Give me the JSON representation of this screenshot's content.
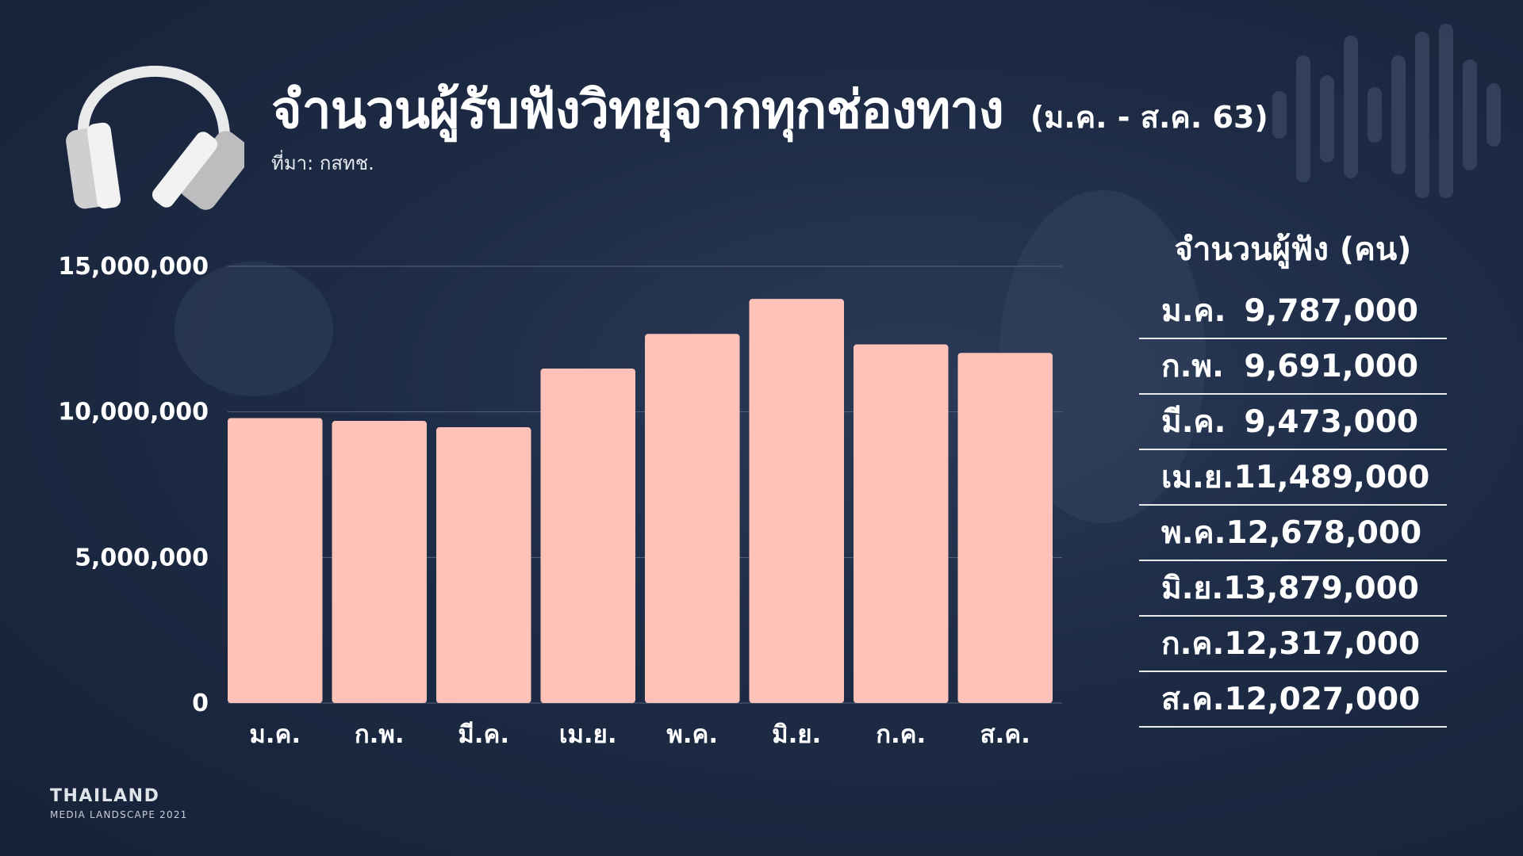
{
  "header": {
    "title": "จำนวนผู้รับฟังวิทยุจากทุกช่องทาง",
    "period": "(ม.ค. -  ส.ค. 63)",
    "source": "ที่มา: กสทช."
  },
  "table": {
    "header": "จำนวนผู้ฟัง (คน)",
    "rows": [
      {
        "month": "ม.ค.",
        "value": "9,787,000"
      },
      {
        "month": "ก.พ.",
        "value": "9,691,000"
      },
      {
        "month": "มี.ค.",
        "value": "9,473,000"
      },
      {
        "month": "เม.ย.",
        "value": "11,489,000"
      },
      {
        "month": "พ.ค.",
        "value": "12,678,000"
      },
      {
        "month": "มิ.ย.",
        "value": "13,879,000"
      },
      {
        "month": "ก.ค.",
        "value": "12,317,000"
      },
      {
        "month": "ส.ค.",
        "value": "12,027,000"
      }
    ]
  },
  "brand": {
    "line1": "THAILAND",
    "line2": "MEDIA LANDSCAPE 2021"
  },
  "icons": [
    "headphones-icon",
    "sound-wave-icon"
  ],
  "colors": {
    "background": "#1d2b45",
    "bar": "#ffc2b8",
    "text": "#ffffff"
  },
  "chart_data": {
    "type": "bar",
    "categories": [
      "ม.ค.",
      "ก.พ.",
      "มี.ค.",
      "เม.ย.",
      "พ.ค.",
      "มิ.ย.",
      "ก.ค.",
      "ส.ค."
    ],
    "values": [
      9787000,
      9691000,
      9473000,
      11489000,
      12678000,
      13879000,
      12317000,
      12027000
    ],
    "yticks": [
      0,
      5000000,
      10000000,
      15000000
    ],
    "ytick_labels": [
      "0",
      "5,000,000",
      "10,000,000",
      "15,000,000"
    ],
    "ylim": [
      0,
      15000000
    ],
    "grid": true,
    "legend": "none"
  }
}
